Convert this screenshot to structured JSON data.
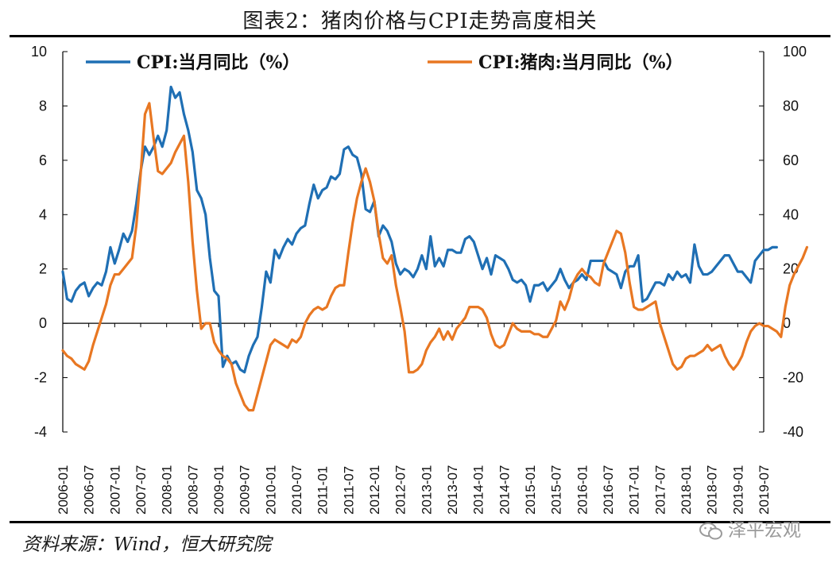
{
  "header": {
    "title": "图表2：猪肉价格与CPI走势高度相关"
  },
  "footer": {
    "source": "资料来源：Wind，恒大研究院",
    "watermark": "泽平宏观"
  },
  "colors": {
    "cpi": "#1F6FB4",
    "pork": "#E87722",
    "axis": "#000000"
  },
  "chart_data": {
    "type": "line",
    "title": "图表2：猪肉价格与CPI走势高度相关",
    "left_axis": {
      "min": -4,
      "max": 10,
      "ticks": [
        -4,
        -2,
        0,
        2,
        4,
        6,
        8,
        10
      ]
    },
    "right_axis": {
      "min": -40,
      "max": 100,
      "ticks": [
        -40,
        -20,
        0,
        20,
        40,
        60,
        80,
        100
      ]
    },
    "x_tick_labels": [
      "2006-01",
      "2006-07",
      "2007-01",
      "2007-07",
      "2008-01",
      "2008-07",
      "2009-01",
      "2009-07",
      "2010-01",
      "2010-07",
      "2011-01",
      "2011-07",
      "2012-01",
      "2012-07",
      "2013-01",
      "2013-07",
      "2014-01",
      "2014-07",
      "2015-01",
      "2015-07",
      "2016-01",
      "2016-07",
      "2017-01",
      "2017-07",
      "2018-01",
      "2018-07",
      "2019-01",
      "2019-07"
    ],
    "start": "2006-01",
    "series": [
      {
        "name": "CPI:当月同比（%）",
        "axis": "left",
        "values": [
          1.9,
          0.9,
          0.8,
          1.2,
          1.4,
          1.5,
          1.0,
          1.3,
          1.5,
          1.4,
          1.9,
          2.8,
          2.2,
          2.7,
          3.3,
          3.0,
          3.4,
          4.4,
          5.6,
          6.5,
          6.2,
          6.5,
          6.9,
          6.5,
          7.1,
          8.7,
          8.3,
          8.5,
          7.7,
          7.1,
          6.3,
          4.9,
          4.6,
          4.0,
          2.4,
          1.2,
          1.0,
          -1.6,
          -1.2,
          -1.5,
          -1.4,
          -1.7,
          -1.8,
          -1.2,
          -0.8,
          -0.5,
          0.6,
          1.9,
          1.5,
          2.7,
          2.4,
          2.8,
          3.1,
          2.9,
          3.3,
          3.5,
          3.6,
          4.4,
          5.1,
          4.6,
          4.9,
          5.0,
          5.4,
          5.3,
          5.5,
          6.4,
          6.5,
          6.2,
          6.1,
          5.5,
          4.2,
          4.1,
          4.5,
          3.2,
          3.6,
          3.4,
          3.0,
          2.2,
          1.8,
          2.0,
          1.9,
          1.7,
          2.0,
          2.5,
          2.0,
          3.2,
          2.1,
          2.4,
          2.1,
          2.7,
          2.7,
          2.6,
          2.6,
          3.1,
          3.2,
          3.0,
          2.5,
          2.0,
          2.4,
          1.8,
          2.5,
          2.4,
          2.3,
          2.0,
          1.6,
          1.5,
          1.6,
          1.4,
          0.8,
          1.4,
          1.4,
          1.5,
          1.2,
          1.4,
          1.6,
          2.0,
          1.6,
          1.3,
          1.5,
          1.6,
          1.8,
          1.6,
          2.3,
          2.3,
          2.3,
          2.3,
          2.0,
          1.9,
          1.8,
          1.3,
          1.9,
          2.1,
          2.1,
          2.5,
          0.8,
          0.9,
          1.2,
          1.5,
          1.5,
          1.4,
          1.8,
          1.6,
          1.9,
          1.7,
          1.8,
          1.5,
          2.9,
          2.1,
          1.8,
          1.8,
          1.9,
          2.1,
          2.3,
          2.5,
          2.5,
          2.2,
          1.9,
          1.9,
          1.7,
          1.5,
          2.3,
          2.5,
          2.7,
          2.7,
          2.8,
          2.8
        ]
      },
      {
        "name": "CPI:猪肉:当月同比（%）",
        "axis": "right",
        "values": [
          -10,
          -12,
          -13,
          -15,
          -16,
          -17,
          -14,
          -8,
          -3,
          2,
          7,
          14,
          18,
          18,
          20,
          22,
          24,
          36,
          55,
          77,
          81,
          68,
          56,
          55,
          57,
          59,
          63,
          66,
          69,
          52,
          30,
          12,
          -2,
          0,
          0,
          -7,
          -10,
          -12,
          -13,
          -15,
          -22,
          -26,
          -30,
          -32,
          -32,
          -26,
          -20,
          -14,
          -8,
          -6,
          -7,
          -8,
          -9,
          -6,
          -7,
          -5,
          0,
          3,
          5,
          6,
          5,
          6,
          10,
          13,
          14,
          14,
          26,
          37,
          46,
          52,
          57,
          52,
          45,
          33,
          24,
          22,
          25,
          14,
          6,
          -3,
          -18,
          -18,
          -17,
          -15,
          -10,
          -7,
          -5,
          -2,
          -6,
          -3,
          -6,
          -2,
          0,
          2,
          6,
          6,
          6,
          5,
          2,
          -4,
          -8,
          -9,
          -8,
          -4,
          0,
          -2,
          -3,
          -3,
          -3,
          -4,
          -4,
          -5,
          -5,
          -2,
          1,
          8,
          5,
          9,
          15,
          18,
          20,
          18,
          17,
          15,
          14,
          22,
          26,
          30,
          34,
          33,
          26,
          15,
          6,
          5,
          5,
          6,
          7,
          8,
          0,
          -5,
          -10,
          -15,
          -17,
          -16,
          -13,
          -12,
          -12,
          -11,
          -10,
          -8,
          -10,
          -9,
          -8,
          -12,
          -15,
          -17,
          -15,
          -12,
          -7,
          -3,
          -1,
          0,
          -1,
          -1,
          -2,
          -3,
          -5,
          6,
          14,
          18,
          21,
          24,
          28
        ]
      }
    ]
  }
}
